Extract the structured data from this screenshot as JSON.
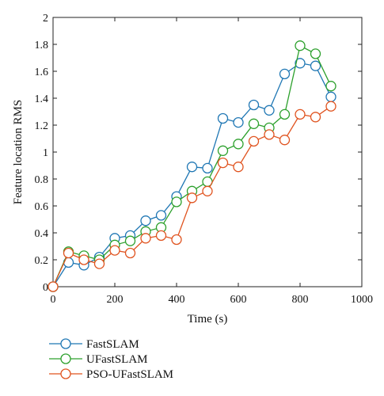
{
  "chart_data": {
    "type": "line",
    "xlabel": "Time (s)",
    "ylabel": "Feature location RMS",
    "xlim": [
      0,
      1000
    ],
    "ylim": [
      0,
      2
    ],
    "xticks": [
      "0",
      "200",
      "400",
      "600",
      "800",
      "1000"
    ],
    "yticks": [
      "0",
      "0.2",
      "0.4",
      "0.6",
      "0.8",
      "1",
      "1.2",
      "1.4",
      "1.6",
      "1.8",
      "2"
    ],
    "grid": false,
    "legend_position": "below-left",
    "x": [
      0,
      50,
      100,
      150,
      200,
      250,
      300,
      350,
      400,
      450,
      500,
      550,
      600,
      650,
      700,
      750,
      800,
      850,
      900
    ],
    "series": [
      {
        "name": "FastSLAM",
        "color": "#1f77b4",
        "values": [
          0,
          0.18,
          0.16,
          0.22,
          0.36,
          0.38,
          0.49,
          0.53,
          0.67,
          0.89,
          0.88,
          1.25,
          1.22,
          1.35,
          1.31,
          1.58,
          1.66,
          1.64,
          1.41
        ]
      },
      {
        "name": "UFastSLAM",
        "color": "#2ca02c",
        "values": [
          0,
          0.26,
          0.23,
          0.2,
          0.31,
          0.34,
          0.41,
          0.44,
          0.63,
          0.71,
          0.78,
          1.01,
          1.06,
          1.21,
          1.18,
          1.28,
          1.79,
          1.73,
          1.49
        ]
      },
      {
        "name": "PSO-UFastSLAM",
        "color": "#e0531f",
        "values": [
          0,
          0.25,
          0.2,
          0.17,
          0.27,
          0.25,
          0.36,
          0.38,
          0.35,
          0.66,
          0.71,
          0.92,
          0.89,
          1.08,
          1.13,
          1.09,
          1.28,
          1.26,
          1.34
        ]
      }
    ]
  }
}
